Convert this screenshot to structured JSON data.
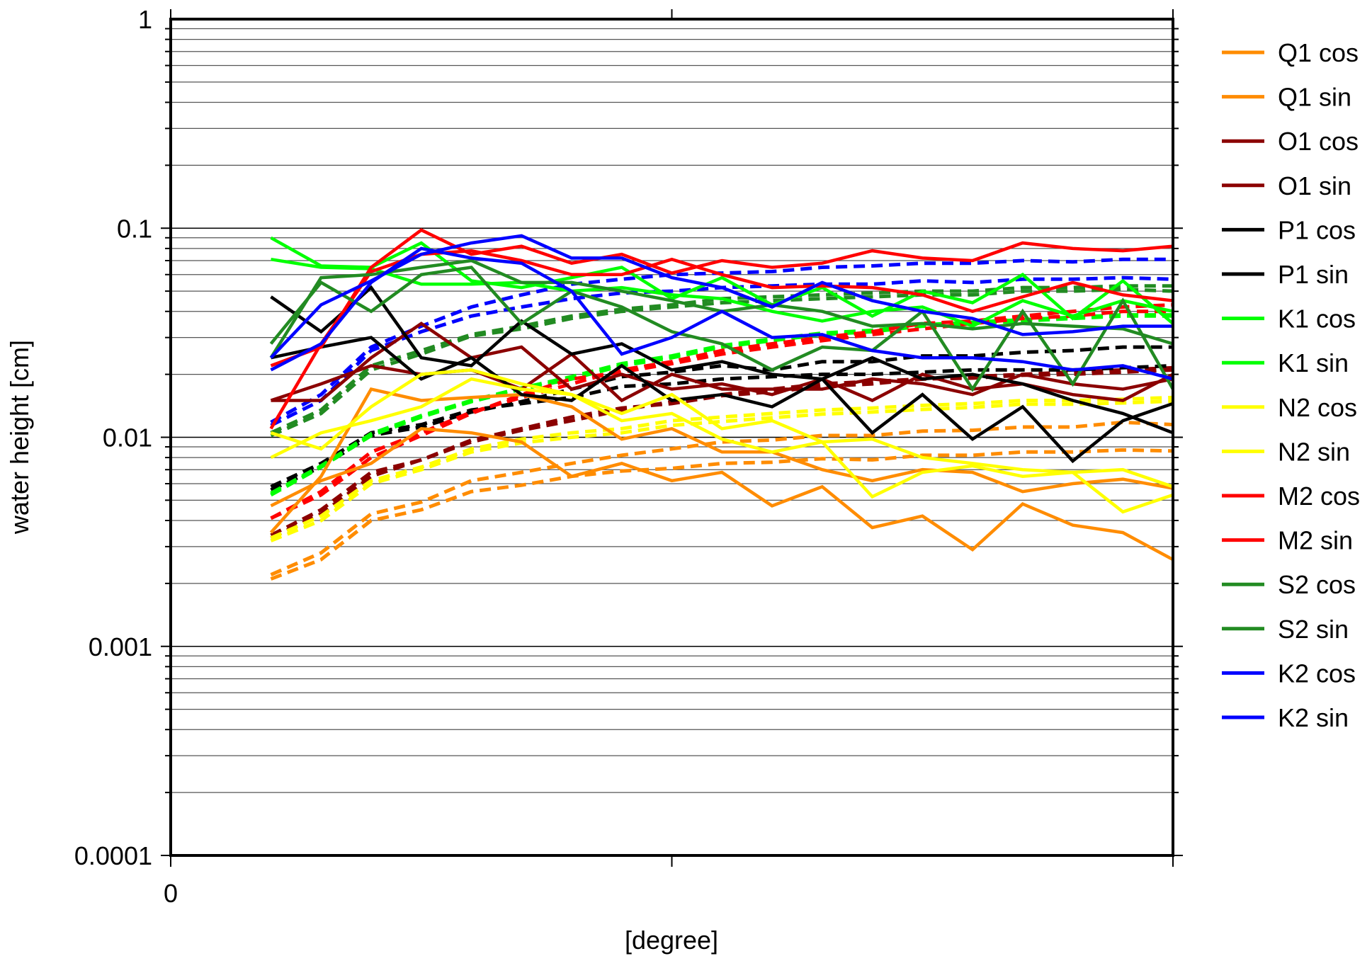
{
  "chart_data": {
    "type": "line",
    "title": "",
    "xlabel": "[degree]",
    "ylabel": "water height [cm]",
    "xlim": [
      0,
      20
    ],
    "ylim": [
      0.0001,
      1
    ],
    "yscale": "log",
    "grid": "horizontal, major and minor",
    "legend_placement": "right, outside",
    "x_tick_labels": [
      {
        "x": 0,
        "label": "0"
      }
    ],
    "x_ticks": [
      0,
      10,
      20
    ],
    "y_tick_labels": [
      {
        "y": 1,
        "label": "1"
      },
      {
        "y": 0.1,
        "label": "0.1"
      },
      {
        "y": 0.01,
        "label": "0.01"
      },
      {
        "y": 0.001,
        "label": "0.001"
      },
      {
        "y": 0.0001,
        "label": "0.0001"
      }
    ],
    "x": [
      2,
      3,
      4,
      5,
      6,
      7,
      8,
      9,
      10,
      11,
      12,
      13,
      14,
      15,
      16,
      17,
      18,
      19,
      20
    ],
    "series": [
      {
        "name": "Q1 cos",
        "color": "#ff8c00",
        "values": [
          0.0047,
          0.0062,
          0.0075,
          0.011,
          0.0105,
          0.0095,
          0.0065,
          0.0075,
          0.0062,
          0.0068,
          0.0047,
          0.0058,
          0.0037,
          0.0042,
          0.0029,
          0.0048,
          0.0038,
          0.0035,
          0.0026
        ],
        "dashed_values": [
          0.0022,
          0.0028,
          0.0043,
          0.0049,
          0.0062,
          0.0068,
          0.0075,
          0.0082,
          0.0088,
          0.0095,
          0.0097,
          0.0102,
          0.0102,
          0.0107,
          0.0108,
          0.0112,
          0.0112,
          0.0118,
          0.0115
        ]
      },
      {
        "name": "Q1 sin",
        "color": "#ff8c00",
        "values": [
          0.0035,
          0.0065,
          0.017,
          0.015,
          0.0155,
          0.016,
          0.014,
          0.0098,
          0.011,
          0.0085,
          0.0085,
          0.007,
          0.0062,
          0.007,
          0.0068,
          0.0055,
          0.006,
          0.0063,
          0.0057
        ],
        "dashed_values": [
          0.0021,
          0.0026,
          0.004,
          0.0045,
          0.0055,
          0.0059,
          0.0065,
          0.0069,
          0.0071,
          0.0075,
          0.0076,
          0.0079,
          0.0078,
          0.0082,
          0.0082,
          0.0085,
          0.0085,
          0.0087,
          0.0086
        ]
      },
      {
        "name": "O1 cos",
        "color": "#8b0000",
        "values": [
          0.015,
          0.015,
          0.024,
          0.035,
          0.024,
          0.027,
          0.017,
          0.02,
          0.017,
          0.018,
          0.016,
          0.019,
          0.015,
          0.02,
          0.017,
          0.018,
          0.016,
          0.015,
          0.02
        ],
        "dashed_values": [
          0.0034,
          0.0045,
          0.0068,
          0.0078,
          0.0097,
          0.011,
          0.0125,
          0.0138,
          0.0145,
          0.0158,
          0.0165,
          0.0175,
          0.018,
          0.019,
          0.0192,
          0.0198,
          0.02,
          0.0205,
          0.021
        ]
      },
      {
        "name": "O1 sin",
        "color": "#8b0000",
        "values": [
          0.015,
          0.018,
          0.022,
          0.02,
          0.021,
          0.017,
          0.025,
          0.015,
          0.02,
          0.017,
          0.017,
          0.017,
          0.019,
          0.018,
          0.016,
          0.02,
          0.018,
          0.017,
          0.019
        ],
        "dashed_values": [
          0.0033,
          0.0043,
          0.0065,
          0.0078,
          0.0095,
          0.0108,
          0.012,
          0.0135,
          0.0148,
          0.016,
          0.017,
          0.018,
          0.0185,
          0.019,
          0.0195,
          0.02,
          0.0205,
          0.021,
          0.0215
        ]
      },
      {
        "name": "P1 cos",
        "color": "#000000",
        "values": [
          0.047,
          0.032,
          0.052,
          0.024,
          0.022,
          0.036,
          0.025,
          0.028,
          0.021,
          0.023,
          0.02,
          0.019,
          0.0105,
          0.016,
          0.0098,
          0.014,
          0.0077,
          0.012,
          0.0145
        ],
        "dashed_values": [
          0.0058,
          0.0075,
          0.0105,
          0.0115,
          0.0135,
          0.0145,
          0.0155,
          0.0175,
          0.018,
          0.019,
          0.0195,
          0.02,
          0.02,
          0.0205,
          0.021,
          0.021,
          0.021,
          0.0215,
          0.022
        ]
      },
      {
        "name": "P1 sin",
        "color": "#000000",
        "values": [
          0.024,
          0.027,
          0.03,
          0.019,
          0.024,
          0.016,
          0.015,
          0.022,
          0.015,
          0.016,
          0.014,
          0.019,
          0.024,
          0.019,
          0.02,
          0.018,
          0.015,
          0.013,
          0.0105
        ],
        "dashed_values": [
          0.0056,
          0.0072,
          0.0102,
          0.0112,
          0.0132,
          0.0148,
          0.017,
          0.0195,
          0.0205,
          0.022,
          0.021,
          0.023,
          0.023,
          0.0245,
          0.0245,
          0.0255,
          0.026,
          0.027,
          0.027
        ]
      },
      {
        "name": "K1 cos",
        "color": "#00ff00",
        "values": [
          0.09,
          0.066,
          0.065,
          0.085,
          0.056,
          0.052,
          0.058,
          0.065,
          0.046,
          0.058,
          0.043,
          0.052,
          0.038,
          0.05,
          0.044,
          0.06,
          0.037,
          0.056,
          0.035
        ],
        "dashed_values": [
          0.0053,
          0.0072,
          0.0102,
          0.0125,
          0.0148,
          0.017,
          0.019,
          0.022,
          0.024,
          0.027,
          0.029,
          0.031,
          0.032,
          0.034,
          0.035,
          0.036,
          0.037,
          0.038,
          0.038
        ]
      },
      {
        "name": "K1 sin",
        "color": "#00ff00",
        "values": [
          0.071,
          0.065,
          0.064,
          0.054,
          0.054,
          0.055,
          0.05,
          0.052,
          0.048,
          0.046,
          0.04,
          0.036,
          0.04,
          0.042,
          0.034,
          0.045,
          0.038,
          0.045,
          0.04
        ],
        "dashed_values": [
          0.0054,
          0.0073,
          0.0104,
          0.0127,
          0.015,
          0.0172,
          0.0195,
          0.0225,
          0.0245,
          0.0275,
          0.0295,
          0.0315,
          0.0325,
          0.0345,
          0.0355,
          0.0365,
          0.0375,
          0.0385,
          0.0385
        ]
      },
      {
        "name": "N2 cos",
        "color": "#ffff00",
        "values": [
          0.0105,
          0.0088,
          0.014,
          0.02,
          0.021,
          0.018,
          0.016,
          0.013,
          0.016,
          0.011,
          0.012,
          0.0095,
          0.0098,
          0.008,
          0.0075,
          0.007,
          0.0068,
          0.007,
          0.0058
        ],
        "dashed_values": [
          0.0033,
          0.0042,
          0.0062,
          0.0072,
          0.0088,
          0.0098,
          0.0105,
          0.011,
          0.012,
          0.0125,
          0.013,
          0.0135,
          0.0138,
          0.0142,
          0.0145,
          0.015,
          0.015,
          0.0152,
          0.0155
        ]
      },
      {
        "name": "N2 sin",
        "color": "#ffff00",
        "values": [
          0.008,
          0.0105,
          0.012,
          0.014,
          0.019,
          0.017,
          0.016,
          0.012,
          0.013,
          0.0098,
          0.0085,
          0.0095,
          0.0052,
          0.0068,
          0.0073,
          0.0065,
          0.0068,
          0.0044,
          0.0053
        ],
        "dashed_values": [
          0.0032,
          0.004,
          0.006,
          0.007,
          0.0085,
          0.0094,
          0.01,
          0.0105,
          0.0114,
          0.0119,
          0.0124,
          0.0129,
          0.0132,
          0.0136,
          0.0139,
          0.0144,
          0.0144,
          0.0146,
          0.0149
        ]
      },
      {
        "name": "M2 cos",
        "color": "#ff0000",
        "values": [
          0.022,
          0.027,
          0.065,
          0.098,
          0.075,
          0.082,
          0.068,
          0.075,
          0.061,
          0.07,
          0.065,
          0.068,
          0.078,
          0.072,
          0.07,
          0.085,
          0.08,
          0.078,
          0.082
        ],
        "dashed_values": [
          0.0041,
          0.0055,
          0.0085,
          0.0105,
          0.0132,
          0.0155,
          0.018,
          0.021,
          0.023,
          0.026,
          0.028,
          0.03,
          0.032,
          0.035,
          0.036,
          0.038,
          0.04,
          0.042,
          0.043
        ]
      },
      {
        "name": "M2 sin",
        "color": "#ff0000",
        "values": [
          0.011,
          0.028,
          0.062,
          0.075,
          0.078,
          0.07,
          0.06,
          0.06,
          0.071,
          0.06,
          0.052,
          0.053,
          0.052,
          0.048,
          0.04,
          0.047,
          0.055,
          0.048,
          0.045
        ],
        "dashed_values": [
          0.0041,
          0.0053,
          0.008,
          0.0102,
          0.013,
          0.016,
          0.019,
          0.0205,
          0.0225,
          0.025,
          0.027,
          0.029,
          0.031,
          0.033,
          0.035,
          0.037,
          0.038,
          0.04,
          0.04
        ]
      },
      {
        "name": "S2 cos",
        "color": "#228b22",
        "values": [
          0.028,
          0.055,
          0.04,
          0.06,
          0.065,
          0.035,
          0.05,
          0.042,
          0.032,
          0.028,
          0.021,
          0.027,
          0.026,
          0.04,
          0.017,
          0.04,
          0.018,
          0.045,
          0.017
        ],
        "dashed_values": [
          0.0105,
          0.0135,
          0.022,
          0.026,
          0.031,
          0.034,
          0.038,
          0.041,
          0.043,
          0.046,
          0.047,
          0.048,
          0.049,
          0.05,
          0.05,
          0.052,
          0.052,
          0.053,
          0.053
        ]
      },
      {
        "name": "S2 sin",
        "color": "#228b22",
        "values": [
          0.024,
          0.058,
          0.06,
          0.065,
          0.07,
          0.055,
          0.055,
          0.05,
          0.045,
          0.04,
          0.043,
          0.04,
          0.034,
          0.035,
          0.033,
          0.035,
          0.034,
          0.033,
          0.028
        ],
        "dashed_values": [
          0.0102,
          0.013,
          0.021,
          0.025,
          0.0305,
          0.033,
          0.037,
          0.04,
          0.042,
          0.044,
          0.045,
          0.046,
          0.047,
          0.048,
          0.048,
          0.05,
          0.05,
          0.051,
          0.05
        ]
      },
      {
        "name": "K2 cos",
        "color": "#0000ff",
        "values": [
          0.024,
          0.043,
          0.056,
          0.075,
          0.085,
          0.092,
          0.072,
          0.072,
          0.058,
          0.052,
          0.042,
          0.055,
          0.045,
          0.04,
          0.037,
          0.031,
          0.032,
          0.034,
          0.034
        ],
        "dashed_values": [
          0.0118,
          0.016,
          0.027,
          0.034,
          0.042,
          0.048,
          0.054,
          0.057,
          0.06,
          0.061,
          0.062,
          0.065,
          0.066,
          0.068,
          0.068,
          0.07,
          0.069,
          0.071,
          0.071
        ]
      },
      {
        "name": "K2 sin",
        "color": "#0000ff",
        "values": [
          0.021,
          0.028,
          0.055,
          0.08,
          0.072,
          0.068,
          0.05,
          0.025,
          0.03,
          0.04,
          0.03,
          0.031,
          0.026,
          0.024,
          0.024,
          0.023,
          0.021,
          0.022,
          0.019
        ],
        "dashed_values": [
          0.0114,
          0.015,
          0.026,
          0.032,
          0.038,
          0.042,
          0.046,
          0.049,
          0.05,
          0.052,
          0.053,
          0.054,
          0.054,
          0.056,
          0.055,
          0.057,
          0.057,
          0.058,
          0.057
        ]
      }
    ]
  }
}
